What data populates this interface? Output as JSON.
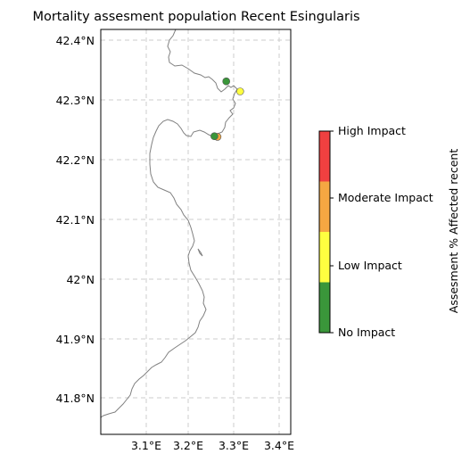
{
  "title": "Mortality assesment population Recent Esingularis",
  "lat_labels": [
    "42.4°N",
    "42.3°N",
    "42.2°N",
    "42.1°N",
    "42°N",
    "41.9°N",
    "41.8°N"
  ],
  "lon_labels": [
    "3.1°E",
    "3.2°E",
    "3.3°E",
    "3.4°E"
  ],
  "colorbar": {
    "label": "Assesment % Affected recent",
    "categories": [
      {
        "name": "No Impact",
        "color": "#3a963a"
      },
      {
        "name": "Low Impact",
        "color": "#ffff40"
      },
      {
        "name": "Moderate Impact",
        "color": "#f5a742"
      },
      {
        "name": "High Impact",
        "color": "#f04040"
      }
    ]
  },
  "map_extent": {
    "lon": [
      3.0,
      3.42
    ],
    "lat": [
      41.74,
      42.42
    ]
  },
  "points": [
    {
      "lon": 3.283,
      "lat": 42.331,
      "category": "No Impact"
    },
    {
      "lon": 3.315,
      "lat": 42.314,
      "category": "Low Impact"
    },
    {
      "lon": 3.263,
      "lat": 42.238,
      "category": "Moderate Impact"
    },
    {
      "lon": 3.256,
      "lat": 42.239,
      "category": "No Impact"
    }
  ]
}
